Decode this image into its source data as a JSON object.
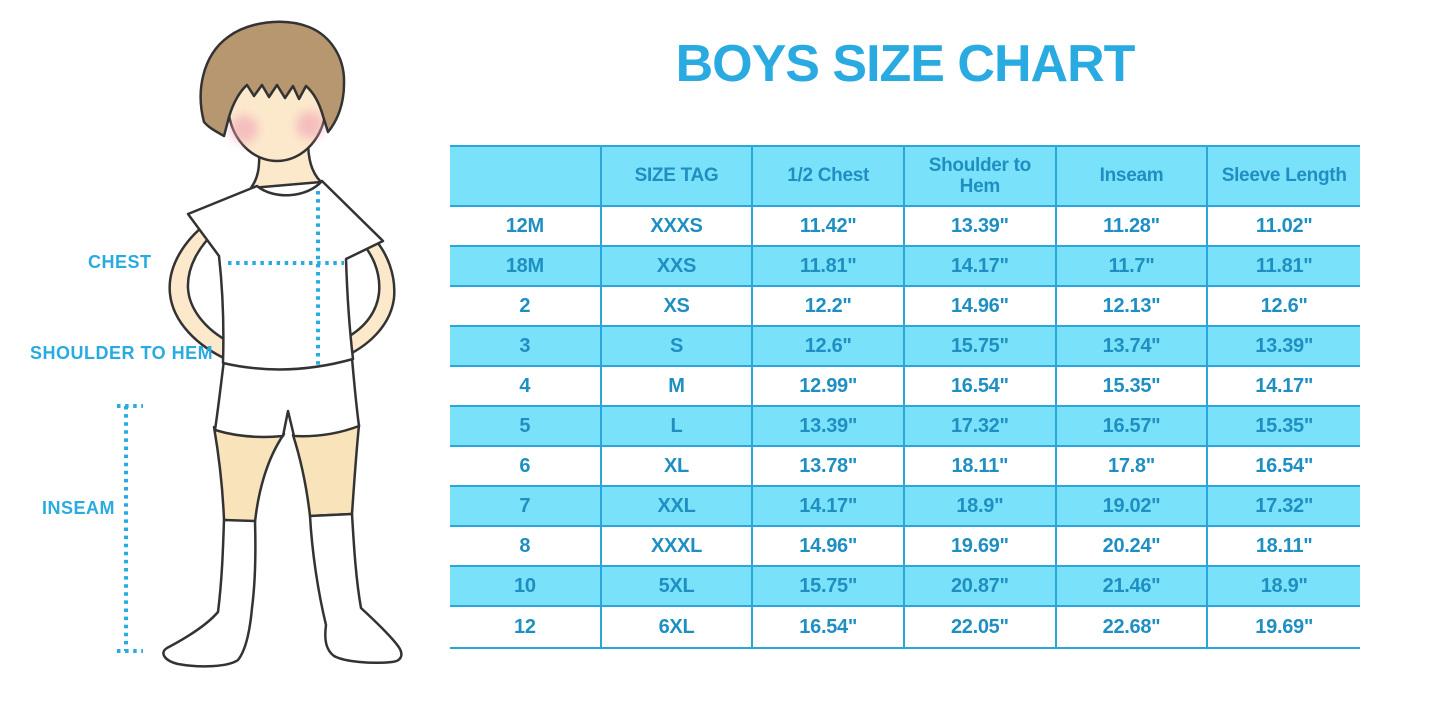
{
  "title": "BOYS SIZE CHART",
  "figure_labels": {
    "chest": "CHEST",
    "shoulder_to_hem": "SHOULDER TO HEM",
    "inseam": "INSEAM"
  },
  "colors": {
    "accent_blue": "#29abe2",
    "table_fill": "#79e2fa",
    "table_line": "#2ca5d8",
    "table_text": "#1f8fc2",
    "hair": "#b7976f",
    "skin": "#fce9cc",
    "leg_skin": "#f9e3ba",
    "cheek": "#f0a1b5",
    "outline": "#333333"
  },
  "chart_data": {
    "type": "table",
    "title": "BOYS SIZE CHART",
    "columns": [
      "",
      "SIZE TAG",
      "1/2 Chest",
      "Shoulder to Hem",
      "Inseam",
      "Sleeve Length"
    ],
    "rows": [
      [
        "12M",
        "XXXS",
        "11.42\"",
        "13.39\"",
        "11.28\"",
        "11.02\""
      ],
      [
        "18M",
        "XXS",
        "11.81\"",
        "14.17\"",
        "11.7\"",
        "11.81\""
      ],
      [
        "2",
        "XS",
        "12.2\"",
        "14.96\"",
        "12.13\"",
        "12.6\""
      ],
      [
        "3",
        "S",
        "12.6\"",
        "15.75\"",
        "13.74\"",
        "13.39\""
      ],
      [
        "4",
        "M",
        "12.99\"",
        "16.54\"",
        "15.35\"",
        "14.17\""
      ],
      [
        "5",
        "L",
        "13.39\"",
        "17.32\"",
        "16.57\"",
        "15.35\""
      ],
      [
        "6",
        "XL",
        "13.78\"",
        "18.11\"",
        "17.8\"",
        "16.54\""
      ],
      [
        "7",
        "XXL",
        "14.17\"",
        "18.9\"",
        "19.02\"",
        "17.32\""
      ],
      [
        "8",
        "XXXL",
        "14.96\"",
        "19.69\"",
        "20.24\"",
        "18.11\""
      ],
      [
        "10",
        "5XL",
        "15.75\"",
        "20.87\"",
        "21.46\"",
        "18.9\""
      ],
      [
        "12",
        "6XL",
        "16.54\"",
        "22.05\"",
        "22.68\"",
        "19.69\""
      ]
    ],
    "row_striping": "white/cyan alternating, header cyan",
    "grid": true,
    "legend_position": "none"
  }
}
